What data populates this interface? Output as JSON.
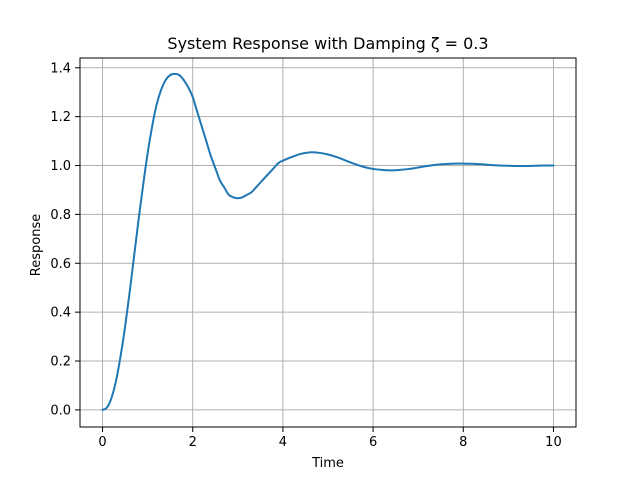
{
  "chart_data": {
    "type": "line",
    "title": "System Response with Damping ζ = 0.3",
    "xlabel": "Time",
    "ylabel": "Response",
    "xlim": [
      -0.5,
      10.5
    ],
    "ylim": [
      -0.07,
      1.44
    ],
    "xticks": [
      0,
      2,
      4,
      6,
      8,
      10
    ],
    "yticks": [
      0.0,
      0.2,
      0.4,
      0.6,
      0.8,
      1.0,
      1.2,
      1.4
    ],
    "xtick_labels": [
      "0",
      "2",
      "4",
      "6",
      "8",
      "10"
    ],
    "ytick_labels": [
      "0.0",
      "0.2",
      "0.4",
      "0.6",
      "0.8",
      "1.0",
      "1.2",
      "1.4"
    ],
    "grid": true,
    "series": [
      {
        "color": "#1f77b4",
        "x": [
          0.0,
          0.1,
          0.2,
          0.3,
          0.4,
          0.5,
          0.6,
          0.7,
          0.8,
          0.9,
          1.0,
          1.1,
          1.2,
          1.3,
          1.4,
          1.5,
          1.6,
          1.7,
          1.8,
          1.9,
          2.0,
          2.1,
          2.2,
          2.3,
          2.4,
          2.5,
          2.6,
          2.7,
          2.8,
          2.9,
          3.0,
          3.1,
          3.2,
          3.3,
          3.4,
          3.5,
          3.6,
          3.7,
          3.8,
          3.9,
          4.0,
          4.2,
          4.4,
          4.6,
          4.8,
          5.0,
          5.2,
          5.4,
          5.6,
          5.8,
          6.0,
          6.2,
          6.4,
          6.6,
          6.8,
          7.0,
          7.2,
          7.4,
          7.6,
          7.8,
          8.0,
          8.2,
          8.4,
          8.6,
          8.8,
          9.0,
          9.2,
          9.4,
          9.6,
          9.8,
          10.0
        ],
        "y": [
          0.0,
          0.01,
          0.05,
          0.12,
          0.22,
          0.34,
          0.48,
          0.63,
          0.78,
          0.92,
          1.05,
          1.16,
          1.25,
          1.31,
          1.35,
          1.37,
          1.375,
          1.37,
          1.35,
          1.32,
          1.28,
          1.22,
          1.16,
          1.1,
          1.04,
          0.99,
          0.94,
          0.91,
          0.88,
          0.87,
          0.866,
          0.87,
          0.88,
          0.89,
          0.91,
          0.93,
          0.95,
          0.97,
          0.99,
          1.01,
          1.02,
          1.035,
          1.048,
          1.054,
          1.052,
          1.045,
          1.034,
          1.02,
          1.006,
          0.994,
          0.986,
          0.982,
          0.98,
          0.982,
          0.986,
          0.992,
          0.998,
          1.003,
          1.006,
          1.008,
          1.008,
          1.007,
          1.005,
          1.002,
          1.0,
          0.999,
          0.998,
          0.998,
          0.999,
          1.0,
          1.0
        ]
      }
    ]
  }
}
